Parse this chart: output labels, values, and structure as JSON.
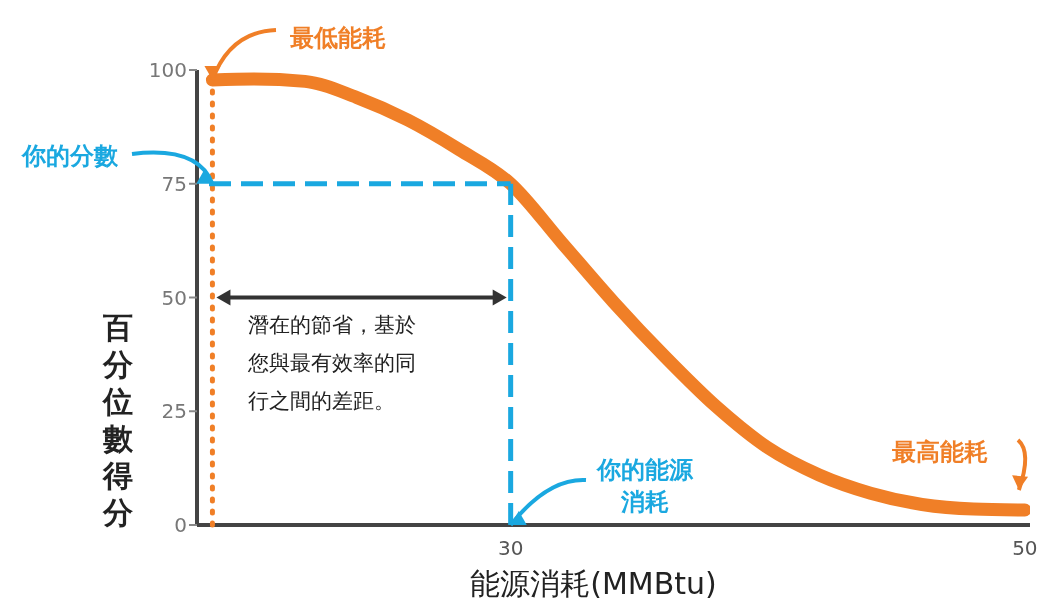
{
  "chart_data": {
    "type": "line",
    "xlabel": "能源消耗(MMBtu)",
    "ylabel": "百分位數得分",
    "x": [
      18.4,
      20,
      22,
      24,
      26,
      28,
      30,
      32,
      34,
      36,
      38,
      40,
      42,
      44,
      46,
      48,
      50
    ],
    "values": [
      97.8,
      98,
      97.5,
      94,
      89,
      82.5,
      75,
      62,
      49,
      37,
      26,
      17,
      11,
      7,
      4.5,
      3.5,
      3.3
    ],
    "color": "#f07f27",
    "xlim": [
      17.8,
      50.2
    ],
    "xticks": [
      30,
      50
    ],
    "ylim": [
      0,
      100
    ],
    "yticks": [
      0,
      25,
      50,
      75,
      100
    ],
    "ref_lines": [
      {
        "axis": "x",
        "value": 18.4,
        "color": "#f07f27",
        "line_style": "dotted"
      },
      {
        "axis": "y",
        "value": 75,
        "color": "#1aa8e0",
        "line_style": "dashed"
      },
      {
        "axis": "x",
        "value": 30,
        "color": "#1aa8e0",
        "line_style": "dashed"
      }
    ],
    "annotations": [
      {
        "text": "最低能耗",
        "x": 18.4,
        "y": 97.8
      },
      {
        "text": "你的分數",
        "x": 18.4,
        "y": 75
      },
      {
        "text": "你的能源消耗",
        "x": 30,
        "y": 0
      },
      {
        "text": "最高能耗",
        "x": 50,
        "y": 3.3
      },
      "潛在的節省，基於您與最有效率的同行之間的差距。"
    ]
  }
}
